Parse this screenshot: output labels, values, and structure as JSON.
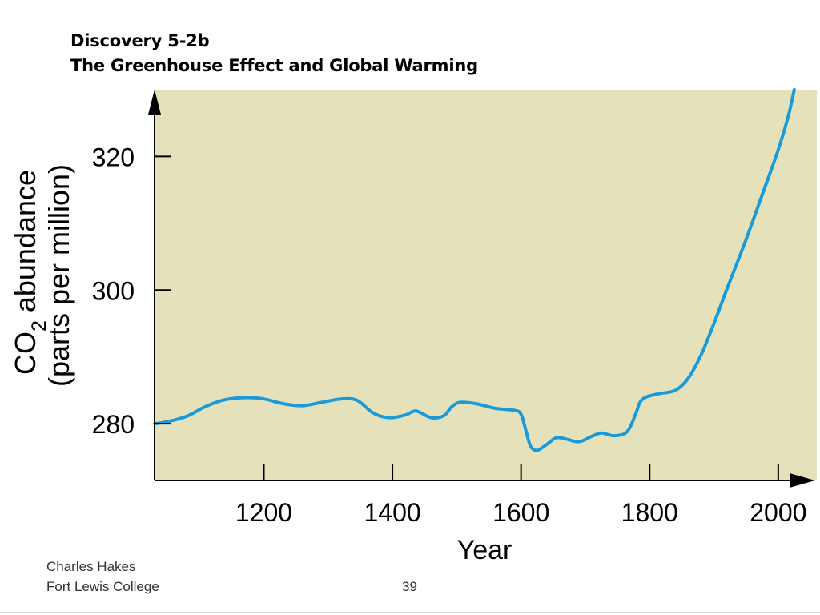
{
  "slide": {
    "title_line1": "Discovery 5-2b",
    "title_line2": "The Greenhouse Effect and Global Warming",
    "footer_author": "Charles Hakes",
    "footer_college": "Fort Lewis College",
    "page_number": "39"
  },
  "colors": {
    "plot_background": "#e5e2bb",
    "line": "#1a9ad9",
    "axis": "#000000"
  },
  "chart_data": {
    "type": "line",
    "title": "",
    "xlabel": "Year",
    "ylabel_main": "CO",
    "ylabel_sub": "2",
    "ylabel_rest": " abundance",
    "ylabel_line2": "(parts per million)",
    "xlim": [
      1030,
      2060
    ],
    "ylim": [
      271.5,
      330
    ],
    "x_ticks": [
      1200,
      1400,
      1600,
      1800,
      2000
    ],
    "x_tick_labels": [
      "1200",
      "1400",
      "1600",
      "1800",
      "2000"
    ],
    "y_ticks": [
      280,
      300,
      320
    ],
    "y_tick_labels": [
      "280",
      "300",
      "320"
    ],
    "grid": false,
    "legend": "none",
    "series": [
      {
        "x": [
          1030,
          1050,
          1080,
          1110,
          1140,
          1170,
          1200,
          1230,
          1260,
          1290,
          1320,
          1345,
          1370,
          1395,
          1420,
          1437,
          1460,
          1480,
          1492,
          1505,
          1530,
          1560,
          1590,
          1600,
          1608,
          1615,
          1625,
          1640,
          1655,
          1670,
          1690,
          1710,
          1725,
          1745,
          1765,
          1778,
          1785,
          1795,
          1815,
          1840,
          1860,
          1880,
          1900,
          1920,
          1950,
          1980,
          2000,
          2015,
          2025
        ],
        "y": [
          280.0,
          280.3,
          281.1,
          282.6,
          283.6,
          283.9,
          283.7,
          283.0,
          282.7,
          283.2,
          283.7,
          283.5,
          281.6,
          280.9,
          281.3,
          281.9,
          280.9,
          281.2,
          282.5,
          283.2,
          283.0,
          282.3,
          282.0,
          281.4,
          278.8,
          276.6,
          276.0,
          276.9,
          277.9,
          277.7,
          277.3,
          278.1,
          278.6,
          278.2,
          278.8,
          281.4,
          283.2,
          284.0,
          284.5,
          285.0,
          286.8,
          290.3,
          295.0,
          300.1,
          307.6,
          315.6,
          321.0,
          325.8,
          330.0
        ]
      }
    ]
  }
}
